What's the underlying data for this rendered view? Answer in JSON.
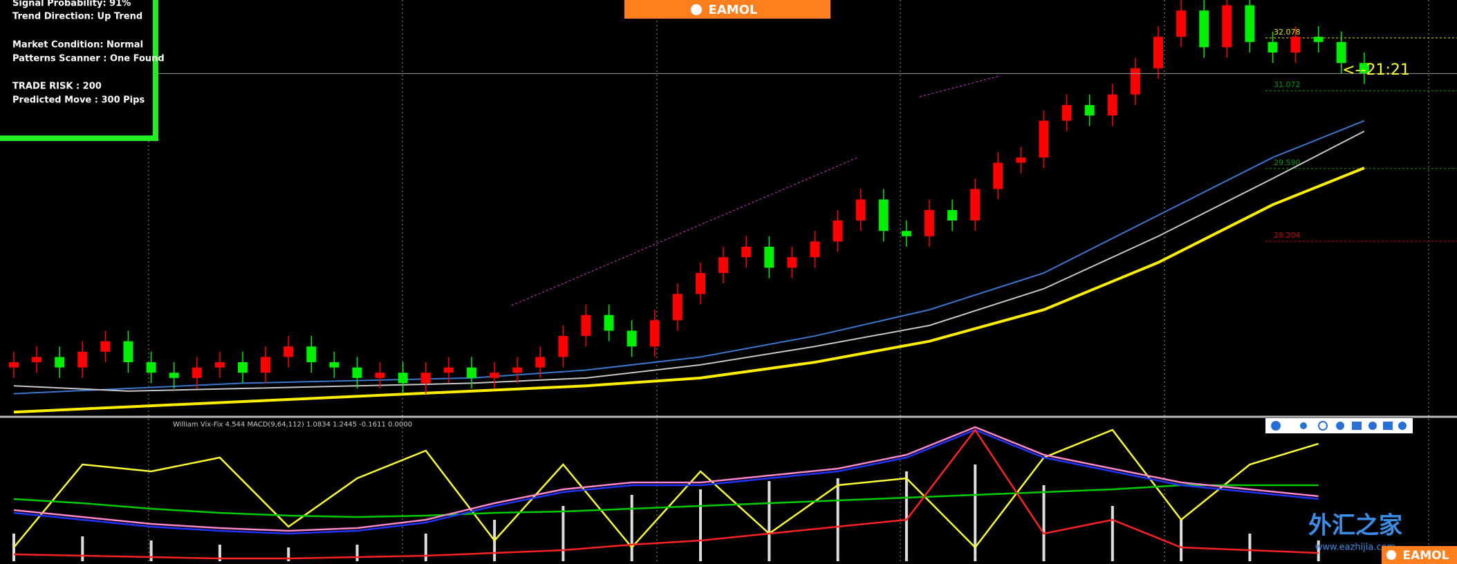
{
  "info_panel": {
    "lines": [
      "Signal Probability: 91%",
      "Trend Direction: Up Trend",
      "Market Condition: Normal",
      "Patterns Scanner : One Found",
      "TRADE RISK : 200",
      "Predicted Move : 300 Pips"
    ]
  },
  "logo": "EAMOL",
  "clock": "<--21:21",
  "watermark": {
    "text": "外汇之家",
    "url": "www.eazhijia.com"
  },
  "footer_logo": "EAMOL",
  "chart_data": [
    {
      "type": "candlestick",
      "open": [
        25.8,
        25.9,
        26.0,
        25.8,
        26.1,
        26.3,
        25.9,
        25.7,
        25.6,
        25.8,
        25.9,
        25.7,
        26.0,
        26.2,
        25.9,
        25.8,
        25.6,
        25.7,
        25.5,
        25.7,
        25.8,
        25.6,
        25.7,
        25.8,
        26.0,
        26.4,
        26.8,
        26.5,
        26.2,
        26.7,
        27.2,
        27.6,
        27.9,
        28.1,
        27.7,
        27.9,
        28.2,
        28.6,
        29.0,
        28.4,
        28.3,
        28.8,
        28.6,
        29.2,
        29.7,
        29.8,
        30.5,
        30.8,
        30.6,
        31.0,
        31.5,
        32.1,
        32.6,
        31.9,
        32.7,
        32.0,
        31.8,
        32.1,
        32.0,
        31.6
      ],
      "high": [
        26.1,
        26.2,
        26.2,
        26.3,
        26.5,
        26.5,
        26.1,
        25.9,
        26.0,
        26.1,
        26.1,
        26.2,
        26.4,
        26.4,
        26.1,
        26.0,
        25.9,
        25.9,
        25.9,
        26.0,
        26.0,
        25.9,
        26.0,
        26.2,
        26.6,
        27.0,
        27.0,
        26.7,
        26.9,
        27.4,
        27.8,
        28.1,
        28.3,
        28.3,
        28.1,
        28.4,
        28.8,
        29.2,
        29.2,
        28.6,
        29.0,
        29.0,
        29.4,
        29.9,
        30.0,
        30.7,
        31.0,
        31.0,
        31.2,
        31.7,
        32.3,
        32.8,
        32.8,
        32.9,
        32.9,
        32.2,
        32.3,
        32.3,
        32.2,
        31.8
      ],
      "low": [
        25.6,
        25.7,
        25.6,
        25.6,
        25.9,
        25.7,
        25.5,
        25.4,
        25.4,
        25.6,
        25.5,
        25.5,
        25.8,
        25.7,
        25.6,
        25.4,
        25.4,
        25.3,
        25.3,
        25.5,
        25.4,
        25.4,
        25.5,
        25.6,
        25.8,
        26.2,
        26.3,
        26.0,
        26.0,
        26.5,
        27.0,
        27.4,
        27.7,
        27.5,
        27.5,
        27.7,
        28.0,
        28.4,
        28.2,
        28.1,
        28.1,
        28.4,
        28.4,
        29.0,
        29.5,
        29.6,
        30.3,
        30.4,
        30.4,
        30.8,
        31.3,
        31.9,
        31.7,
        31.7,
        31.8,
        31.6,
        31.6,
        31.8,
        31.4,
        31.2
      ],
      "close": [
        25.9,
        26.0,
        25.8,
        26.1,
        26.3,
        25.9,
        25.7,
        25.6,
        25.8,
        25.9,
        25.7,
        26.0,
        26.2,
        25.9,
        25.8,
        25.6,
        25.7,
        25.5,
        25.7,
        25.8,
        25.6,
        25.7,
        25.8,
        26.0,
        26.4,
        26.8,
        26.5,
        26.2,
        26.7,
        27.2,
        27.6,
        27.9,
        28.1,
        27.7,
        27.9,
        28.2,
        28.6,
        29.0,
        28.4,
        28.3,
        28.8,
        28.6,
        29.2,
        29.7,
        29.8,
        30.5,
        30.8,
        30.6,
        31.0,
        31.5,
        32.1,
        32.6,
        31.9,
        32.7,
        32.0,
        31.8,
        32.1,
        32.0,
        31.6,
        31.4
      ],
      "up_color": "#ff0000",
      "down_color": "#00ee00",
      "ylim": [
        24.9,
        32.8
      ],
      "levels": [
        {
          "value": 32.078,
          "color": "#e6e600"
        },
        {
          "value": 31.072,
          "color": "#009900"
        },
        {
          "value": 29.59,
          "label": "29.590",
          "color": "#009900"
        },
        {
          "value": 28.204,
          "color": "#cc0000"
        }
      ],
      "series": [
        {
          "color": "#3a78d0",
          "x": [
            0,
            5,
            10,
            15,
            20,
            25,
            30,
            35,
            40,
            45,
            50,
            55,
            59
          ],
          "values": [
            25.3,
            25.4,
            25.5,
            25.55,
            25.6,
            25.75,
            26.0,
            26.4,
            26.9,
            27.6,
            28.7,
            29.8,
            30.5
          ]
        },
        {
          "color": "#c8c8c8",
          "x": [
            0,
            5,
            10,
            15,
            20,
            25,
            30,
            35,
            40,
            45,
            50,
            55,
            59
          ],
          "values": [
            25.45,
            25.35,
            25.4,
            25.45,
            25.5,
            25.6,
            25.85,
            26.2,
            26.6,
            27.3,
            28.3,
            29.4,
            30.3
          ]
        },
        {
          "color": "#ffee00",
          "x": [
            0,
            5,
            10,
            15,
            20,
            25,
            30,
            35,
            40,
            45,
            50,
            55,
            59
          ],
          "values": [
            24.95,
            25.05,
            25.15,
            25.25,
            25.35,
            25.45,
            25.6,
            25.9,
            26.3,
            26.9,
            27.8,
            28.9,
            29.6
          ]
        }
      ]
    },
    {
      "type": "line",
      "title": "William Vix-Fix 4.544  MACD(9,64,112) 1.0834 1.2445 -0.1611 0.0000",
      "ylim": [
        0,
        100
      ],
      "x": [
        0,
        3,
        6,
        9,
        12,
        15,
        18,
        21,
        24,
        27,
        30,
        33,
        36,
        39,
        42,
        45,
        48,
        51,
        54,
        57
      ],
      "bars": {
        "color": "#dddddd",
        "values": [
          20,
          18,
          15,
          12,
          10,
          12,
          20,
          30,
          40,
          48,
          52,
          58,
          60,
          65,
          70,
          55,
          40,
          30,
          20,
          15
        ]
      },
      "series": [
        {
          "color": "#ffff33",
          "values": [
            10,
            70,
            65,
            75,
            25,
            60,
            80,
            15,
            70,
            10,
            65,
            20,
            55,
            60,
            10,
            75,
            95,
            30,
            70,
            85
          ]
        },
        {
          "color": "#00cc00",
          "values": [
            45,
            42,
            38,
            35,
            33,
            32,
            33,
            35,
            36,
            38,
            40,
            42,
            44,
            46,
            48,
            50,
            52,
            55,
            55,
            55
          ]
        },
        {
          "color": "#ff88cc",
          "values": [
            37,
            32,
            27,
            24,
            22,
            24,
            30,
            42,
            52,
            57,
            57,
            62,
            67,
            77,
            97,
            77,
            67,
            57,
            52,
            47
          ]
        },
        {
          "color": "#2233ff",
          "values": [
            35,
            30,
            25,
            22,
            20,
            22,
            28,
            40,
            50,
            55,
            55,
            60,
            65,
            75,
            95,
            75,
            65,
            55,
            50,
            45
          ]
        },
        {
          "color": "#ff2222",
          "values": [
            5,
            4,
            3,
            2,
            2,
            3,
            4,
            6,
            8,
            12,
            15,
            20,
            25,
            30,
            95,
            20,
            30,
            10,
            8,
            6
          ]
        }
      ]
    }
  ]
}
